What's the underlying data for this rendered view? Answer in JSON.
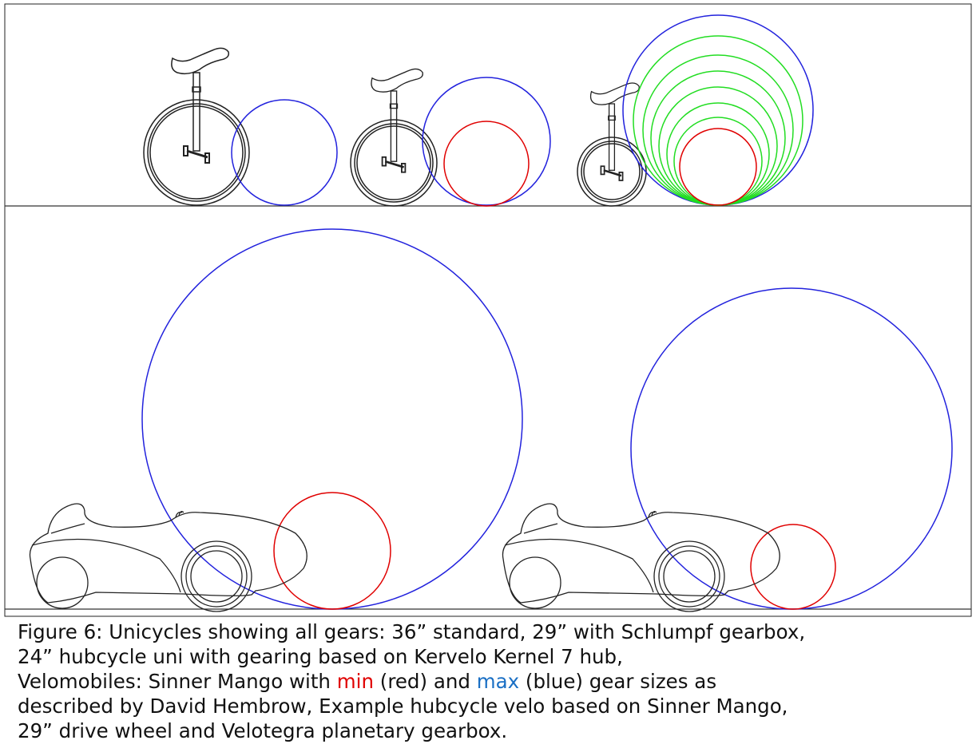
{
  "caption": {
    "parts": [
      "Figure 6: Unicycles showing all gears: 36” standard, 29” with Schlumpf gearbox,",
      "24” hubcycle uni with gearing based on Kervelo Kernel 7 hub,",
      "Velomobiles: Sinner Mango with ",
      "min",
      " (red) and ",
      "max",
      " (blue) gear sizes as",
      "described by David Hembrow, Example hubcycle velo based on Sinner Mango,",
      "29” drive wheel and Velotegra planetary gearbox."
    ]
  }
}
